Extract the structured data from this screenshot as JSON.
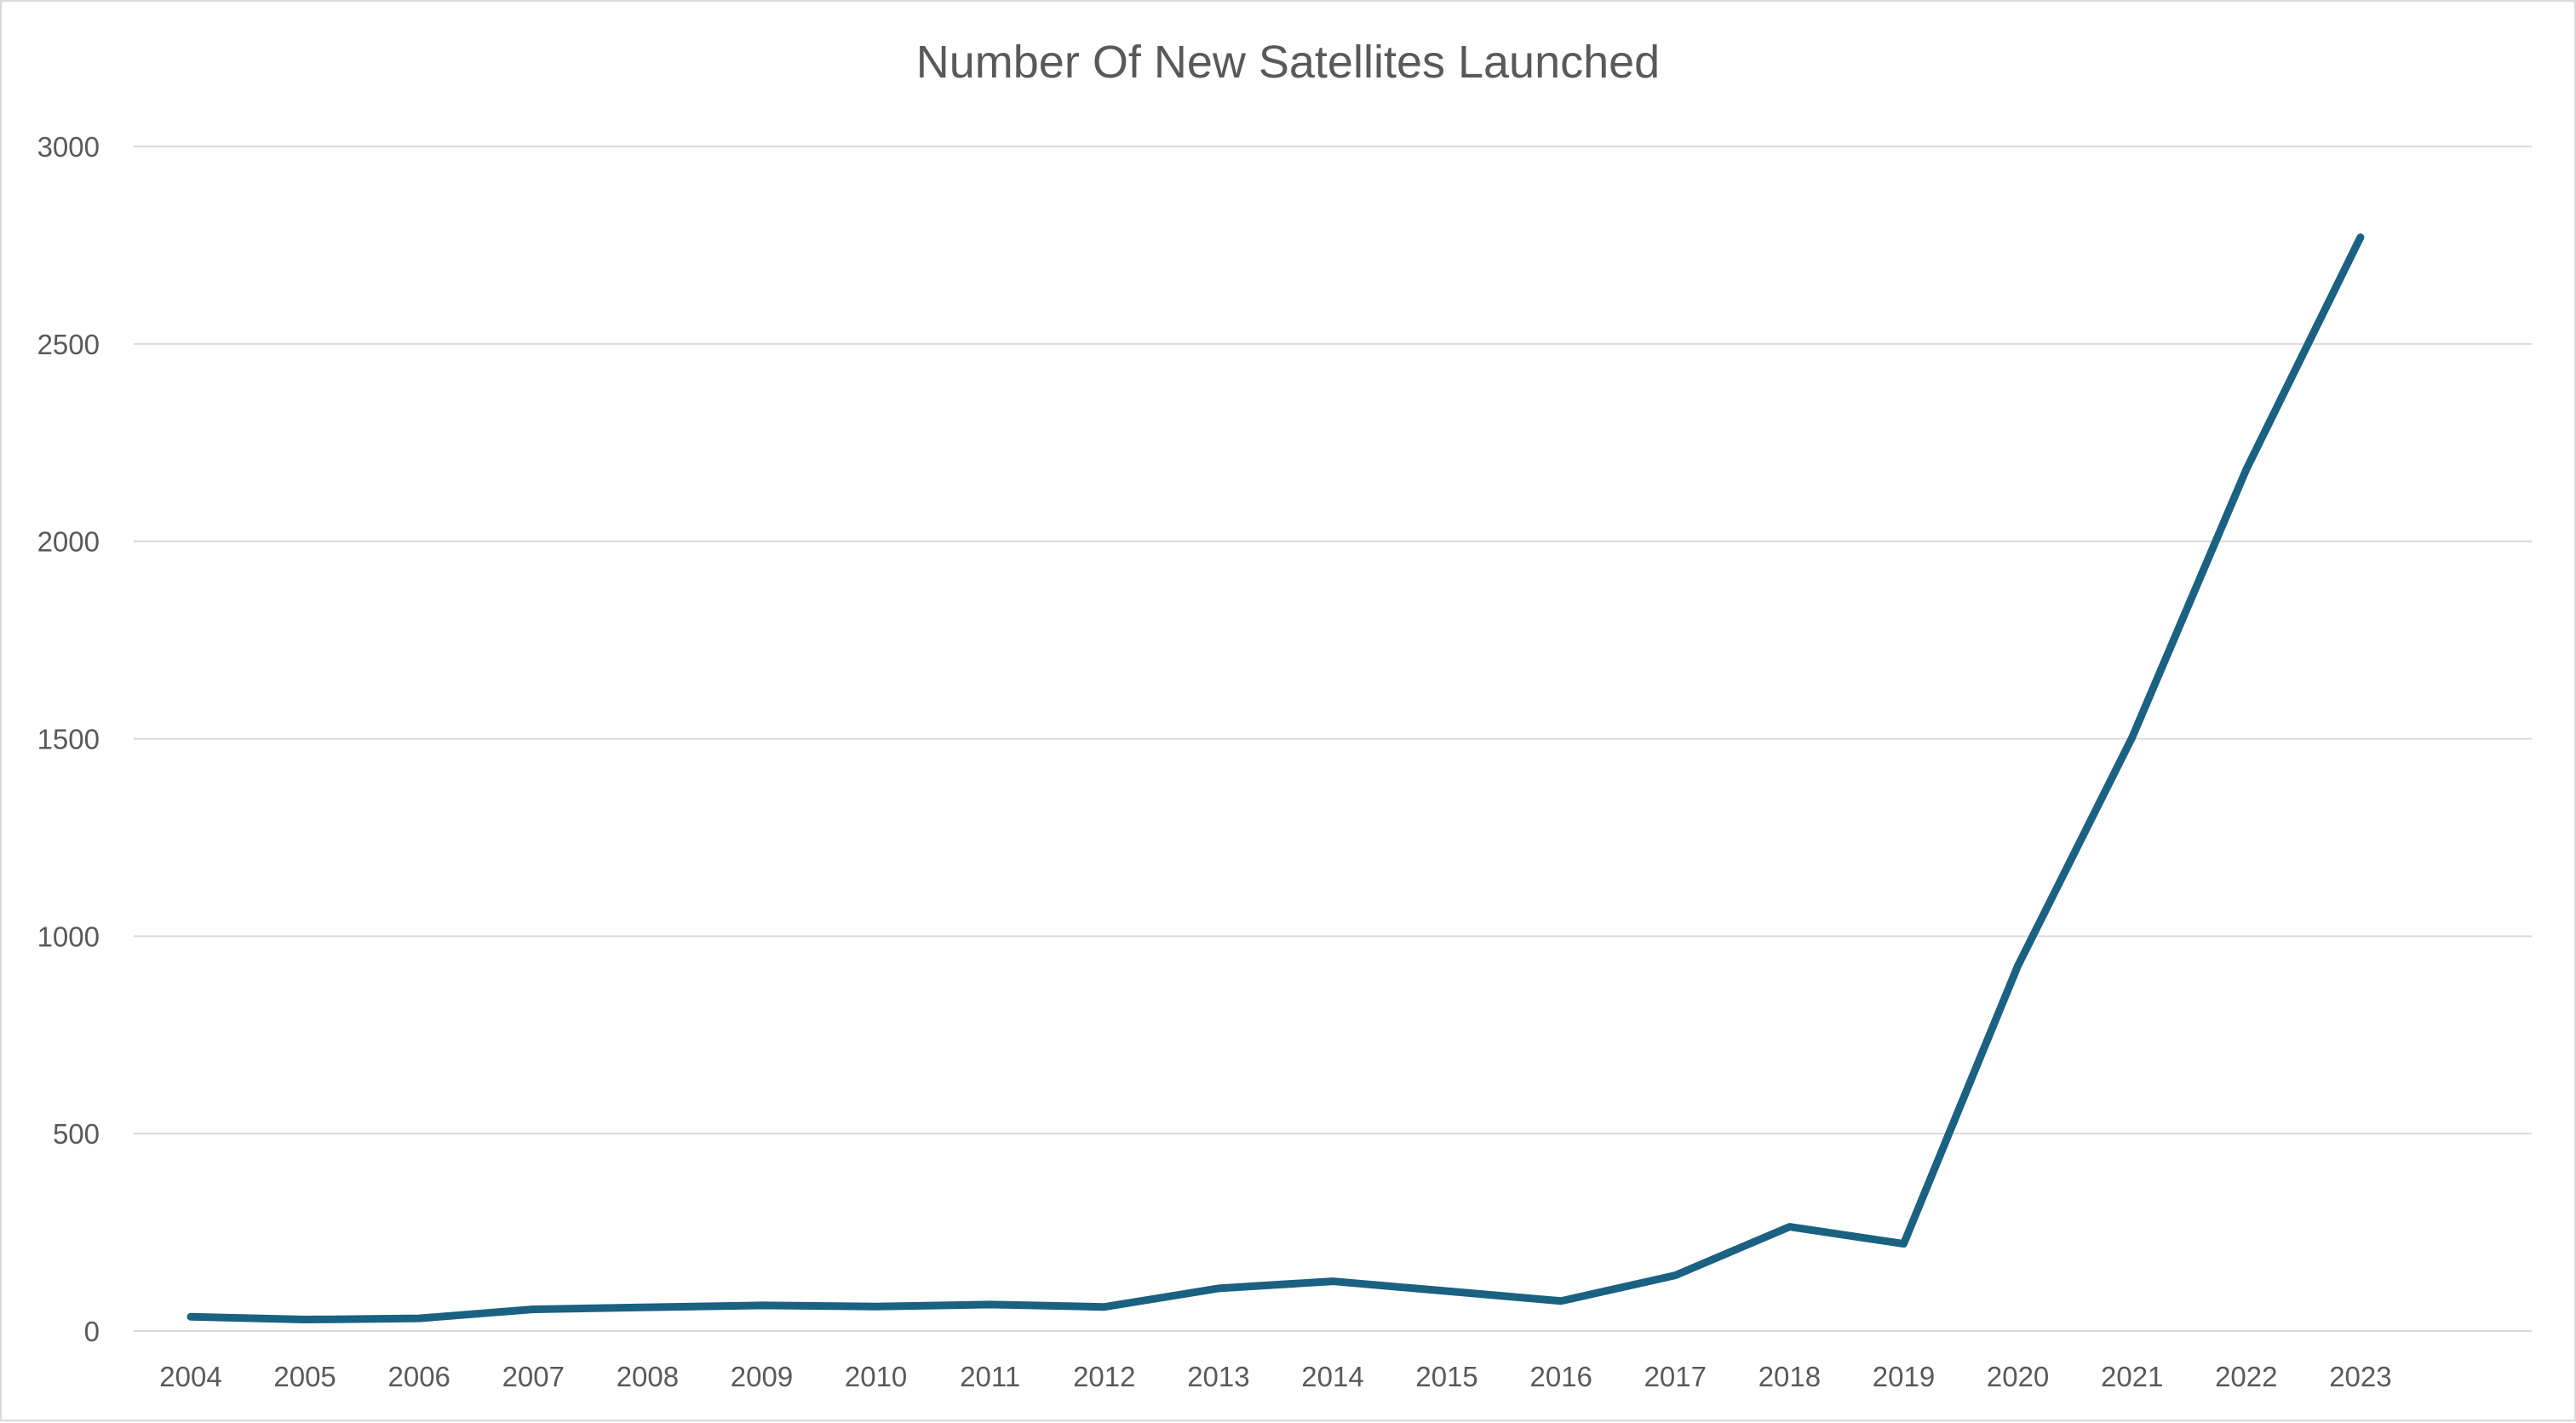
{
  "chart_data": {
    "type": "line",
    "title": "Number Of New Satellites Launched",
    "xlabel": "",
    "ylabel": "",
    "categories": [
      "2004",
      "2005",
      "2006",
      "2007",
      "2008",
      "2009",
      "2010",
      "2011",
      "2012",
      "2013",
      "2014",
      "2015",
      "2016",
      "2017",
      "2018",
      "2019",
      "2020",
      "2021",
      "2022",
      "2023"
    ],
    "series": [
      {
        "values": [
          36,
          29,
          32,
          55,
          60,
          65,
          62,
          67,
          61,
          108,
          126,
          101,
          76,
          141,
          264,
          221,
          925,
          1503,
          2182,
          2770
        ],
        "color": "#1a6182"
      }
    ],
    "ylim": [
      0,
      3000
    ],
    "yticks": [
      0,
      500,
      1000,
      1500,
      2000,
      2500,
      3000
    ],
    "grid": true,
    "legend": "none"
  }
}
